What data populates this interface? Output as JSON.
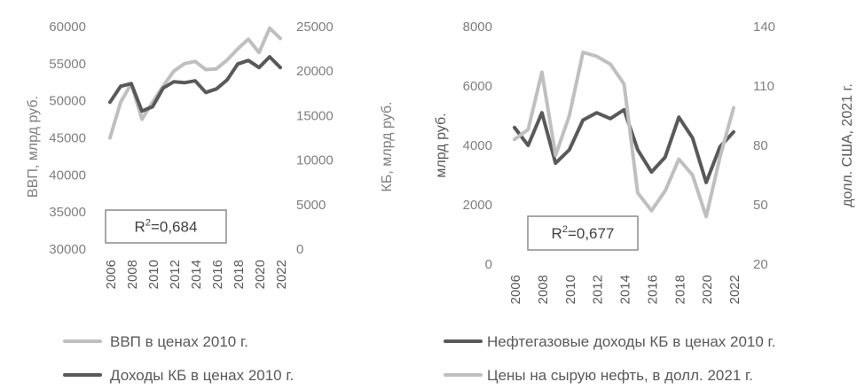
{
  "colors": {
    "dark": "#595959",
    "light": "#bfbfbf",
    "grey_text": "#7f7f7f",
    "dark_text": "#595959",
    "box": "#8c8c8c"
  },
  "chart_data": [
    {
      "type": "line",
      "x": [
        "2006",
        "2007",
        "2008",
        "2009",
        "2010",
        "2011",
        "2012",
        "2013",
        "2014",
        "2015",
        "2016",
        "2017",
        "2018",
        "2019",
        "2020",
        "2021",
        "2022"
      ],
      "x_tick_labels": [
        "2006",
        "2008",
        "2010",
        "2012",
        "2014",
        "2016",
        "2018",
        "2020",
        "2022"
      ],
      "ylabel_left": "ВВП, млрд руб.",
      "ylabel_right": "КБ, млрд руб.",
      "ylim_left": [
        30000,
        60000
      ],
      "ylim_right": [
        0,
        25000
      ],
      "yticks_left": [
        "30000",
        "35000",
        "40000",
        "45000",
        "50000",
        "55000",
        "60000"
      ],
      "yticks_right": [
        "0",
        "5000",
        "10000",
        "15000",
        "20000",
        "25000"
      ],
      "annotation": {
        "base": "R",
        "sup": "2",
        "value": "=0,684"
      },
      "grid": false,
      "legend_position": "bottom",
      "series": [
        {
          "name": "ВВП в ценах 2010 г.",
          "axis": "left",
          "color": "#bfbfbf",
          "values": [
            45000,
            49800,
            52300,
            47500,
            49800,
            52000,
            54000,
            55000,
            55300,
            54200,
            54300,
            55500,
            57000,
            58300,
            56500,
            59800,
            58400
          ]
        },
        {
          "name": "Доходы КБ в ценах 2010 г.",
          "axis": "right",
          "color": "#595959",
          "values": [
            16500,
            18300,
            18600,
            15500,
            16000,
            18100,
            18800,
            18700,
            18900,
            17600,
            18000,
            19000,
            20800,
            21200,
            20400,
            21600,
            20400
          ]
        }
      ]
    },
    {
      "type": "line",
      "x": [
        "2006",
        "2007",
        "2008",
        "2009",
        "2010",
        "2011",
        "2012",
        "2013",
        "2014",
        "2015",
        "2016",
        "2017",
        "2018",
        "2019",
        "2020",
        "2021",
        "2022"
      ],
      "x_tick_labels": [
        "2006",
        "2008",
        "2010",
        "2012",
        "2014",
        "2016",
        "2018",
        "2020",
        "2022"
      ],
      "ylabel_left": "млрд руб.",
      "ylabel_right": "долл. США, 2021 г.",
      "ylim_left": [
        0,
        8000
      ],
      "ylim_right": [
        20,
        140
      ],
      "yticks_left": [
        "0",
        "2000",
        "4000",
        "6000",
        "8000"
      ],
      "yticks_right": [
        "20",
        "50",
        "80",
        "110",
        "140"
      ],
      "annotation": {
        "base": "R",
        "sup": "2",
        "value": "=0,677"
      },
      "grid": false,
      "legend_position": "bottom",
      "series": [
        {
          "name": "Нефтегазовые доходы КБ в ценах 2010 г.",
          "axis": "left",
          "color": "#595959",
          "values": [
            4600,
            4000,
            5100,
            3400,
            3850,
            4850,
            5100,
            4900,
            5200,
            3850,
            3100,
            3600,
            4950,
            4250,
            2750,
            3950,
            4450
          ]
        },
        {
          "name": "Цены на сырую нефть, в долл. 2021 г.",
          "axis": "right",
          "color": "#bfbfbf",
          "values": [
            83,
            88,
            117,
            75,
            95,
            127,
            125,
            121,
            111,
            56,
            47,
            57,
            73,
            65,
            44,
            74,
            99
          ]
        }
      ]
    }
  ]
}
